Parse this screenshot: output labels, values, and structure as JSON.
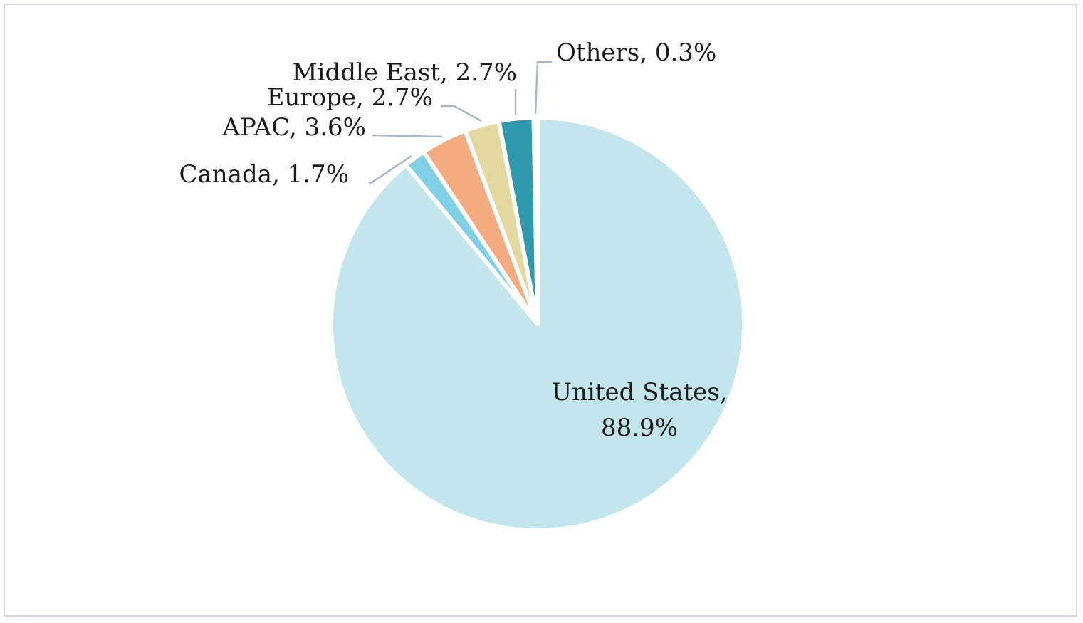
{
  "chart_data": {
    "type": "pie",
    "slices": [
      {
        "category": "United States",
        "value": 88.9,
        "label": "88.9%",
        "color": "#c2e6eb"
      },
      {
        "category": "Canada",
        "value": 1.7,
        "label": "1.7%",
        "color": "#7fd0e6"
      },
      {
        "category": "APAC",
        "value": 3.6,
        "label": "3.6%",
        "color": "#f4ab80"
      },
      {
        "category": "Europe",
        "value": 2.7,
        "label": "2.7%",
        "color": "#e3d9a0"
      },
      {
        "category": "Middle East",
        "value": 2.7,
        "label": "2.7%",
        "color": "#2f9aab"
      },
      {
        "category": "Others",
        "value": 0.3,
        "label": "0.3%",
        "color": "#2a6d7c"
      }
    ],
    "start_angle": "12 o'clock",
    "direction": "clockwise",
    "legend": "none"
  }
}
